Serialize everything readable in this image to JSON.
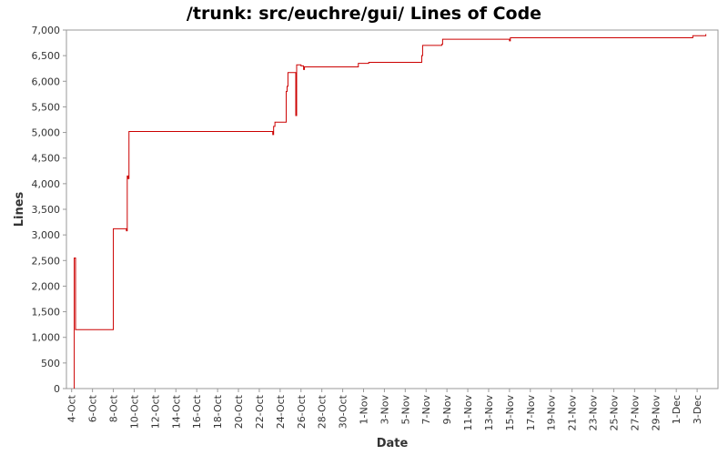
{
  "chart_data": {
    "type": "line",
    "title": "/trunk: src/euchre/gui/ Lines of Code",
    "xlabel": "Date",
    "ylabel": "Lines",
    "ylim": [
      0,
      7000
    ],
    "y_ticks": [
      0,
      500,
      1000,
      1500,
      2000,
      2500,
      3000,
      3500,
      4000,
      4500,
      5000,
      5500,
      6000,
      6500,
      7000
    ],
    "y_tick_labels": [
      "0",
      "500",
      "1,000",
      "1,500",
      "2,000",
      "2,500",
      "3,000",
      "3,500",
      "4,000",
      "4,500",
      "5,000",
      "5,500",
      "6,000",
      "6,500",
      "7,000"
    ],
    "x_ticks": [
      "2006-10-04",
      "2006-10-06",
      "2006-10-08",
      "2006-10-10",
      "2006-10-12",
      "2006-10-14",
      "2006-10-16",
      "2006-10-18",
      "2006-10-20",
      "2006-10-22",
      "2006-10-24",
      "2006-10-26",
      "2006-10-28",
      "2006-10-30",
      "2006-11-01",
      "2006-11-03",
      "2006-11-05",
      "2006-11-07",
      "2006-11-09",
      "2006-11-11",
      "2006-11-13",
      "2006-11-15",
      "2006-11-17",
      "2006-11-19",
      "2006-11-21",
      "2006-11-23",
      "2006-11-25",
      "2006-11-27",
      "2006-11-29",
      "2006-12-01",
      "2006-12-03"
    ],
    "x_tick_labels": [
      "4-Oct",
      "6-Oct",
      "8-Oct",
      "10-Oct",
      "12-Oct",
      "14-Oct",
      "16-Oct",
      "18-Oct",
      "20-Oct",
      "22-Oct",
      "24-Oct",
      "26-Oct",
      "28-Oct",
      "30-Oct",
      "1-Nov",
      "3-Nov",
      "5-Nov",
      "7-Nov",
      "9-Nov",
      "11-Nov",
      "13-Nov",
      "15-Nov",
      "17-Nov",
      "19-Nov",
      "21-Nov",
      "23-Nov",
      "25-Nov",
      "27-Nov",
      "29-Nov",
      "1-Dec",
      "3-Dec"
    ],
    "xlim": [
      "2006-10-03T12:00",
      "2006-12-05T00:00"
    ],
    "grid": false,
    "series": [
      {
        "color": "#cc0000",
        "step": true,
        "points": [
          [
            "2006-10-04T06:00",
            0
          ],
          [
            "2006-10-04T06:00",
            2550
          ],
          [
            "2006-10-04T09:00",
            1150
          ],
          [
            "2006-10-08T00:00",
            1150
          ],
          [
            "2006-10-08T00:00",
            3120
          ],
          [
            "2006-10-09T06:00",
            3120
          ],
          [
            "2006-10-09T06:00",
            3080
          ],
          [
            "2006-10-09T08:00",
            4150
          ],
          [
            "2006-10-09T10:00",
            4100
          ],
          [
            "2006-10-09T12:00",
            5020
          ],
          [
            "2006-10-23T07:00",
            5020
          ],
          [
            "2006-10-23T07:00",
            4960
          ],
          [
            "2006-10-23T09:00",
            5120
          ],
          [
            "2006-10-23T12:00",
            5200
          ],
          [
            "2006-10-24T12:00",
            5200
          ],
          [
            "2006-10-24T14:00",
            5800
          ],
          [
            "2006-10-24T16:00",
            5900
          ],
          [
            "2006-10-24T18:00",
            6170
          ],
          [
            "2006-10-25T12:00",
            6170
          ],
          [
            "2006-10-25T12:00",
            5330
          ],
          [
            "2006-10-25T14:00",
            6320
          ],
          [
            "2006-10-26T00:00",
            6300
          ],
          [
            "2006-10-26T06:00",
            6230
          ],
          [
            "2006-10-26T08:00",
            6280
          ],
          [
            "2006-10-31T12:00",
            6280
          ],
          [
            "2006-10-31T12:00",
            6350
          ],
          [
            "2006-11-01T12:00",
            6370
          ],
          [
            "2006-11-06T12:00",
            6370
          ],
          [
            "2006-11-06T14:00",
            6500
          ],
          [
            "2006-11-06T16:00",
            6700
          ],
          [
            "2006-11-08T12:00",
            6720
          ],
          [
            "2006-11-08T14:00",
            6820
          ],
          [
            "2006-11-15T00:00",
            6820
          ],
          [
            "2006-11-15T00:00",
            6790
          ],
          [
            "2006-11-15T02:00",
            6850
          ],
          [
            "2006-12-02T12:00",
            6850
          ],
          [
            "2006-12-02T14:00",
            6890
          ],
          [
            "2006-12-03T18:00",
            6890
          ],
          [
            "2006-12-03T20:00",
            6920
          ]
        ]
      }
    ]
  }
}
